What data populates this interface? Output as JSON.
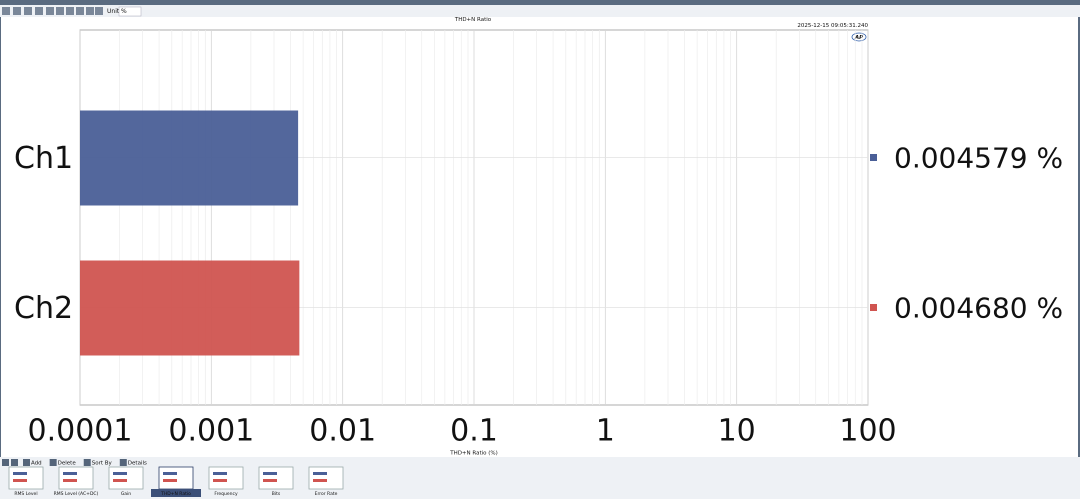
{
  "toolbar": {
    "unit_label": "Unit",
    "unit_value": "%"
  },
  "chart_data": {
    "type": "bar",
    "orientation": "horizontal",
    "title": "THD+N Ratio",
    "timestamp": "2025-12-15 09:05:31.240",
    "logo": "AP",
    "x_label": "THD+N Ratio (%)",
    "categories": [
      "Ch1",
      "Ch2"
    ],
    "values": [
      0.004579,
      0.00468
    ],
    "value_labels": [
      "0.004579 %",
      "0.004680 %"
    ],
    "colors": [
      "#4a5f97",
      "#d05450"
    ],
    "xlim": [
      0.0001,
      100
    ],
    "xticks": [
      0.0001,
      0.001,
      0.01,
      0.1,
      1,
      10,
      100
    ],
    "log_scale": true,
    "grid": true
  },
  "bottom_toolbar": [
    "Add",
    "Delete",
    "Sort By",
    "Details"
  ],
  "thumbnails": [
    "RMS Level",
    "RMS Level (AC+DC)",
    "Gain",
    "THD+N Ratio",
    "Frequency",
    "Bits",
    "Error Rate"
  ],
  "selected_thumbnail": 3
}
